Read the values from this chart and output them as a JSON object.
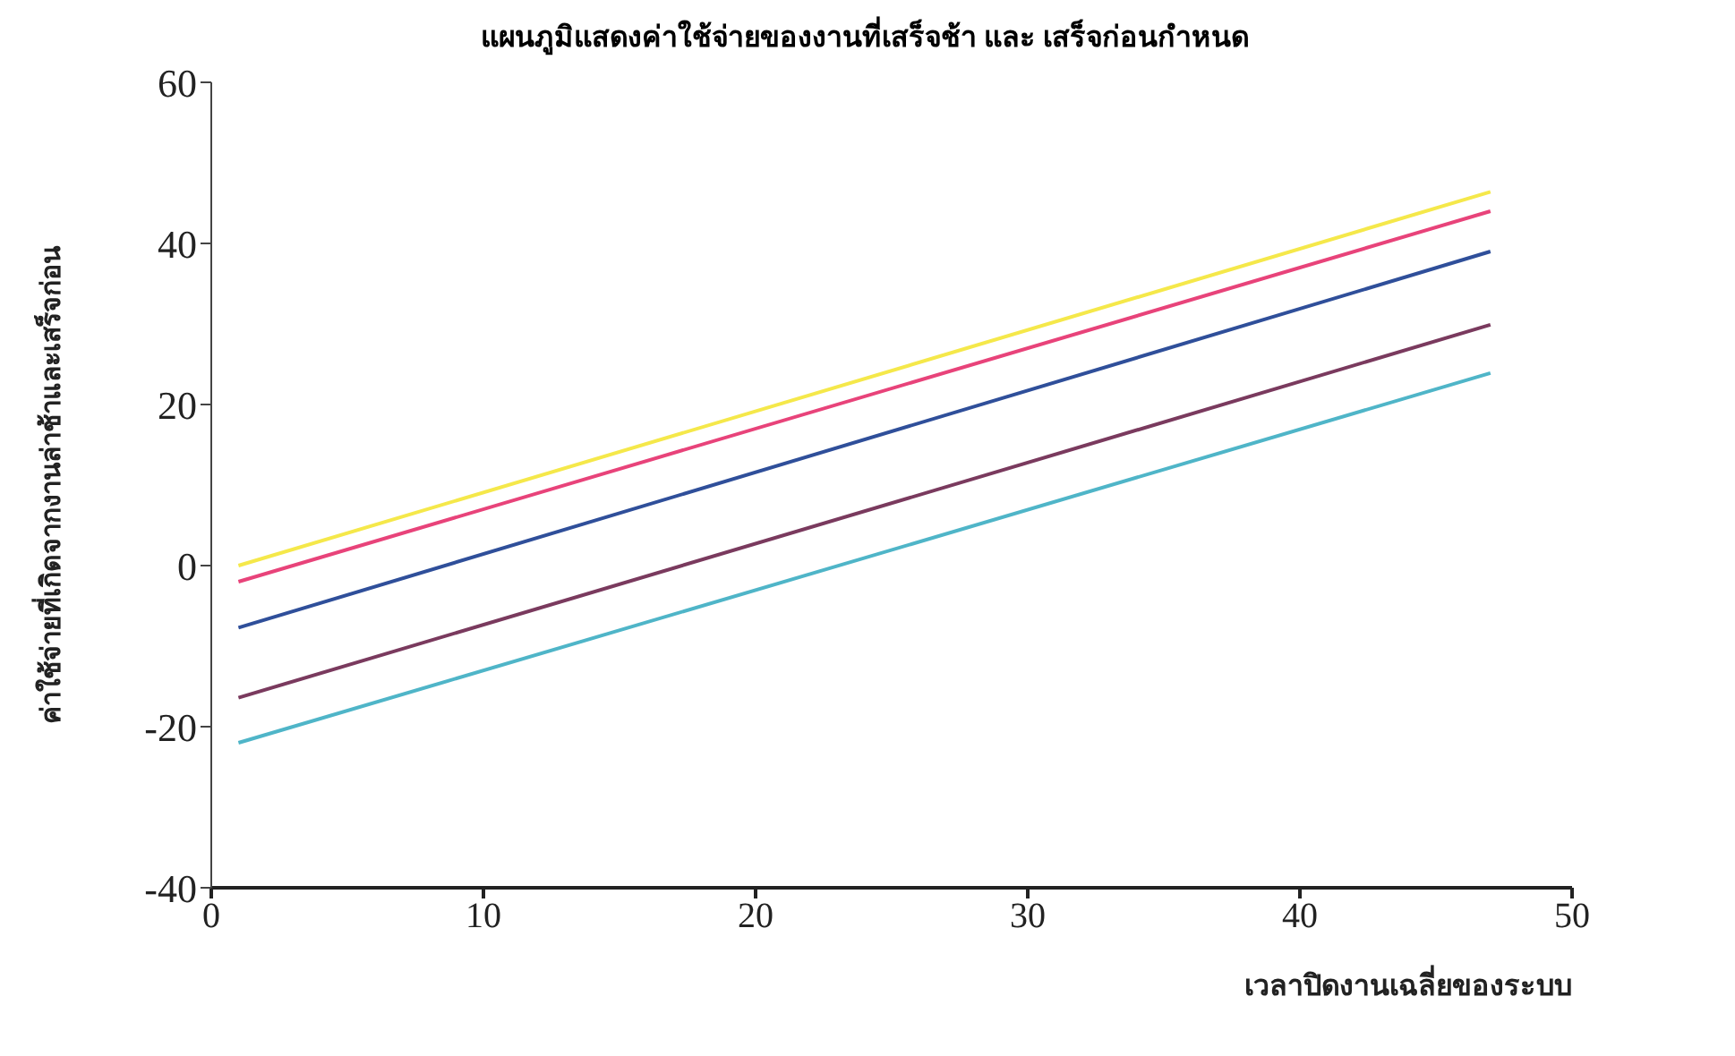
{
  "chart_data": {
    "type": "line",
    "title": "แผนภูมิแสดงค่าใช้จ่ายของงานที่เสร็จช้า และ เสร็จก่อนกำหนด",
    "xlabel": "เวลาปิดงานเฉลี่ยของระบบ",
    "ylabel": "ค่าใช้จ่ายที่เกิดจากงานล่าช้าและเสร็จก่อน",
    "x": [
      1,
      47
    ],
    "series": [
      {
        "color": "#f5e84a",
        "values": [
          0,
          46.4
        ]
      },
      {
        "color": "#e8437a",
        "values": [
          -2,
          44
        ]
      },
      {
        "color": "#2f4f9a",
        "values": [
          -7.7,
          39
        ]
      },
      {
        "color": "#7a3a5e",
        "values": [
          -16.4,
          29.9
        ]
      },
      {
        "color": "#4fb5c8",
        "values": [
          -22,
          23.9
        ]
      }
    ],
    "xlim": [
      0,
      50
    ],
    "xticks": [
      0,
      10,
      20,
      30,
      40,
      50
    ],
    "ylim": [
      -40,
      60
    ],
    "yticks": [
      -40,
      -20,
      0,
      20,
      40,
      60
    ],
    "grid": false,
    "legend": false,
    "marker": "none",
    "line_style": "solid"
  }
}
